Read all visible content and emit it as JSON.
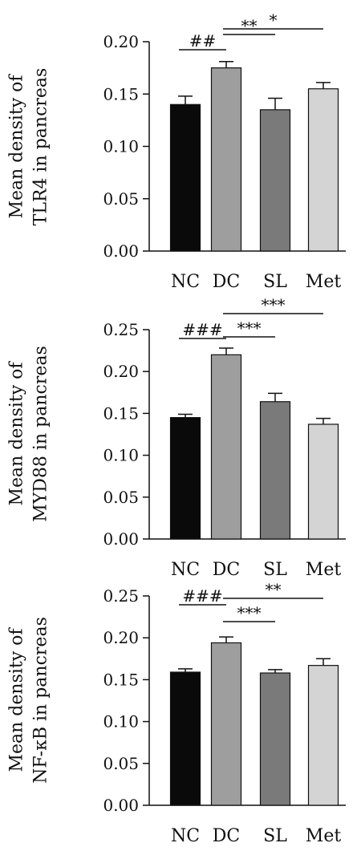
{
  "chart_data": [
    {
      "type": "bar",
      "categories": [
        "NC",
        "DC",
        "SL",
        "Met"
      ],
      "values": [
        0.14,
        0.175,
        0.135,
        0.155
      ],
      "errors": [
        0.008,
        0.006,
        0.011,
        0.006
      ],
      "bar_colors": [
        "#0a0a0a",
        "#9e9e9e",
        "#7a7a7a",
        "#d4d4d4"
      ],
      "ylabel_lines": [
        "Mean density of",
        "TLR4 in pancreas"
      ],
      "yticks": [
        "0.00",
        "0.05",
        "0.10",
        "0.15",
        "0.20"
      ],
      "ylim": [
        0,
        0.2
      ],
      "significance": [
        {
          "from": 0,
          "to": 1,
          "label": "##"
        },
        {
          "from": 1,
          "to": 2,
          "label": "**"
        },
        {
          "from": 1,
          "to": 3,
          "label": "*"
        }
      ]
    },
    {
      "type": "bar",
      "categories": [
        "NC",
        "DC",
        "SL",
        "Met"
      ],
      "values": [
        0.145,
        0.22,
        0.164,
        0.137
      ],
      "errors": [
        0.004,
        0.008,
        0.01,
        0.007
      ],
      "bar_colors": [
        "#0a0a0a",
        "#9e9e9e",
        "#7a7a7a",
        "#d4d4d4"
      ],
      "ylabel_lines": [
        "Mean density of",
        "MYD88 in pancreas"
      ],
      "yticks": [
        "0.00",
        "0.05",
        "0.10",
        "0.15",
        "0.20",
        "0.25"
      ],
      "ylim": [
        0,
        0.25
      ],
      "significance": [
        {
          "from": 0,
          "to": 1,
          "label": "###"
        },
        {
          "from": 1,
          "to": 2,
          "label": "***"
        },
        {
          "from": 1,
          "to": 3,
          "label": "***"
        }
      ]
    },
    {
      "type": "bar",
      "categories": [
        "NC",
        "DC",
        "SL",
        "Met"
      ],
      "values": [
        0.159,
        0.194,
        0.158,
        0.167
      ],
      "errors": [
        0.004,
        0.007,
        0.004,
        0.008
      ],
      "bar_colors": [
        "#0a0a0a",
        "#9e9e9e",
        "#7a7a7a",
        "#d4d4d4"
      ],
      "ylabel_lines": [
        "Mean density of",
        "NF-κB in pancreas"
      ],
      "yticks": [
        "0.00",
        "0.05",
        "0.10",
        "0.15",
        "0.20",
        "0.25"
      ],
      "ylim": [
        0,
        0.25
      ],
      "significance": [
        {
          "from": 0,
          "to": 1,
          "label": "###"
        },
        {
          "from": 1,
          "to": 2,
          "label": "***"
        },
        {
          "from": 1,
          "to": 3,
          "label": "**"
        }
      ]
    }
  ]
}
